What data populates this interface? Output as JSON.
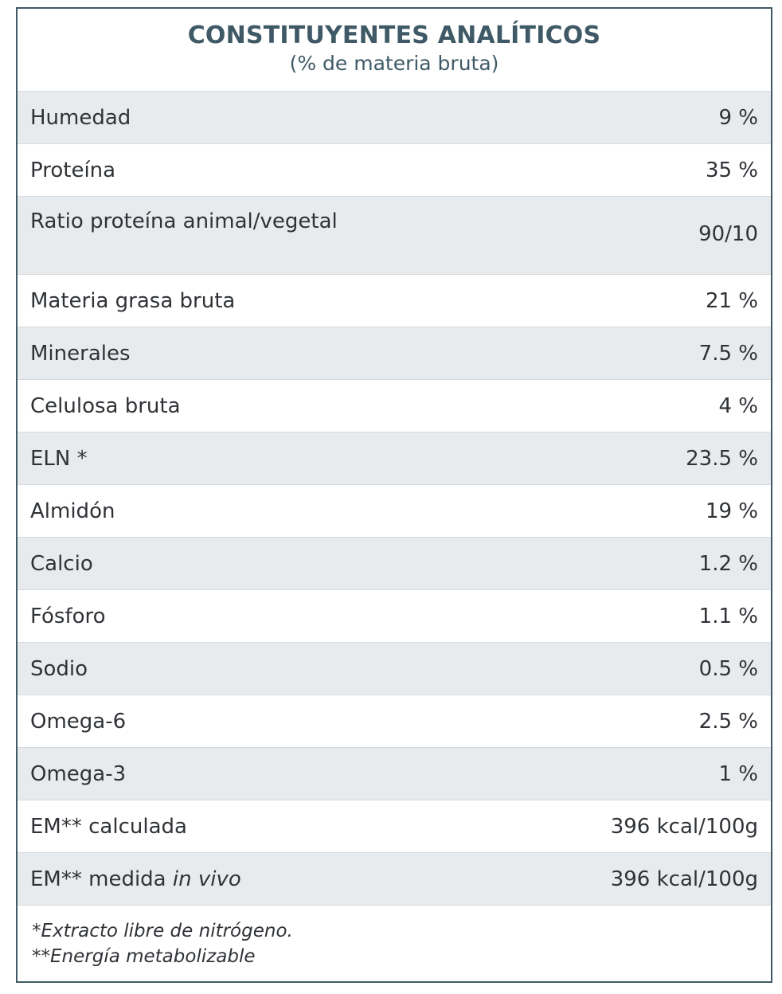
{
  "title": "CONSTITUYENTES ANALÍTICOS",
  "subtitle": "(% de materia bruta)",
  "rows": [
    {
      "label": "Humedad",
      "value": "9 %"
    },
    {
      "label": "Proteína",
      "value": "35 %"
    },
    {
      "label": "Ratio proteína animal/vegetal",
      "value": "90/10"
    },
    {
      "label": "Materia grasa bruta",
      "value": "21 %"
    },
    {
      "label": "Minerales",
      "value": "7.5 %"
    },
    {
      "label": "Celulosa bruta",
      "value": "4 %"
    },
    {
      "label": "ELN *",
      "value": "23.5 %"
    },
    {
      "label": "Almidón",
      "value": "19 %"
    },
    {
      "label": "Calcio",
      "value": "1.2 %"
    },
    {
      "label": "Fósforo",
      "value": "1.1 %"
    },
    {
      "label": "Sodio",
      "value": "0.5 %"
    },
    {
      "label": "Omega-6",
      "value": "2.5 %"
    },
    {
      "label": "Omega-3",
      "value": "1 %"
    },
    {
      "label": "EM** calculada",
      "value": "396 kcal/100g"
    },
    {
      "label_prefix": "EM** medida ",
      "label_italic": "in vivo",
      "value": "396 kcal/100g"
    }
  ],
  "footnotes": [
    "*Extracto libre de nitrógeno.",
    "**Energía metabolizable"
  ],
  "colors": {
    "border": "#3f5a66",
    "title": "#3f5a66",
    "shaded_row": "#e8ebee"
  }
}
